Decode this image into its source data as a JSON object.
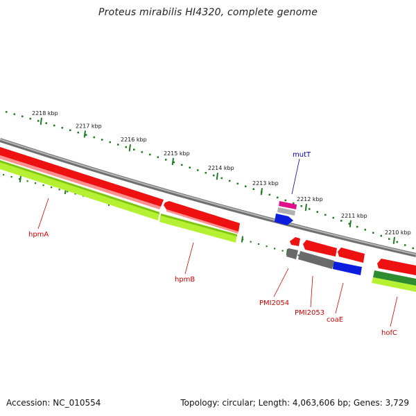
{
  "title": "Proteus mirabilis HI4320, complete genome",
  "footer": {
    "accession": "Accession: NC_010554",
    "summary": "Topology: circular; Length: 4,063,606 bp; Genes: 3,729"
  },
  "colors": {
    "backbone": "#8a8a8a",
    "cds_red": "#ee1111",
    "cds_pink_fill": "#ff9090",
    "gene_green": "#b6f032",
    "gene_darkgreen": "#2e8b2e",
    "gene_blue": "#0b1ee0",
    "gene_grey": "#6a6a6a",
    "gene_magenta": "#e0108a",
    "ruler": "#1f7a1f",
    "label_red": "#cc0000",
    "label_blue": "#0000aa"
  },
  "ruler_ticks": [
    {
      "label": "2218 kbp"
    },
    {
      "label": "2217 kbp"
    },
    {
      "label": "2216 kbp"
    },
    {
      "label": "2215 kbp"
    },
    {
      "label": "2214 kbp"
    },
    {
      "label": "2213 kbp"
    },
    {
      "label": "2212 kbp"
    },
    {
      "label": "2211 kbp"
    },
    {
      "label": "2210 kbp"
    }
  ],
  "gene_labels": [
    {
      "name": "hpmA",
      "color": "#cc0000"
    },
    {
      "name": "hpmB",
      "color": "#cc0000"
    },
    {
      "name": "mutT",
      "color": "#0000aa"
    },
    {
      "name": "PMI2054",
      "color": "#cc0000"
    },
    {
      "name": "PMI2053",
      "color": "#cc0000"
    },
    {
      "name": "coaE",
      "color": "#cc0000"
    },
    {
      "name": "hofC",
      "color": "#cc0000"
    }
  ]
}
